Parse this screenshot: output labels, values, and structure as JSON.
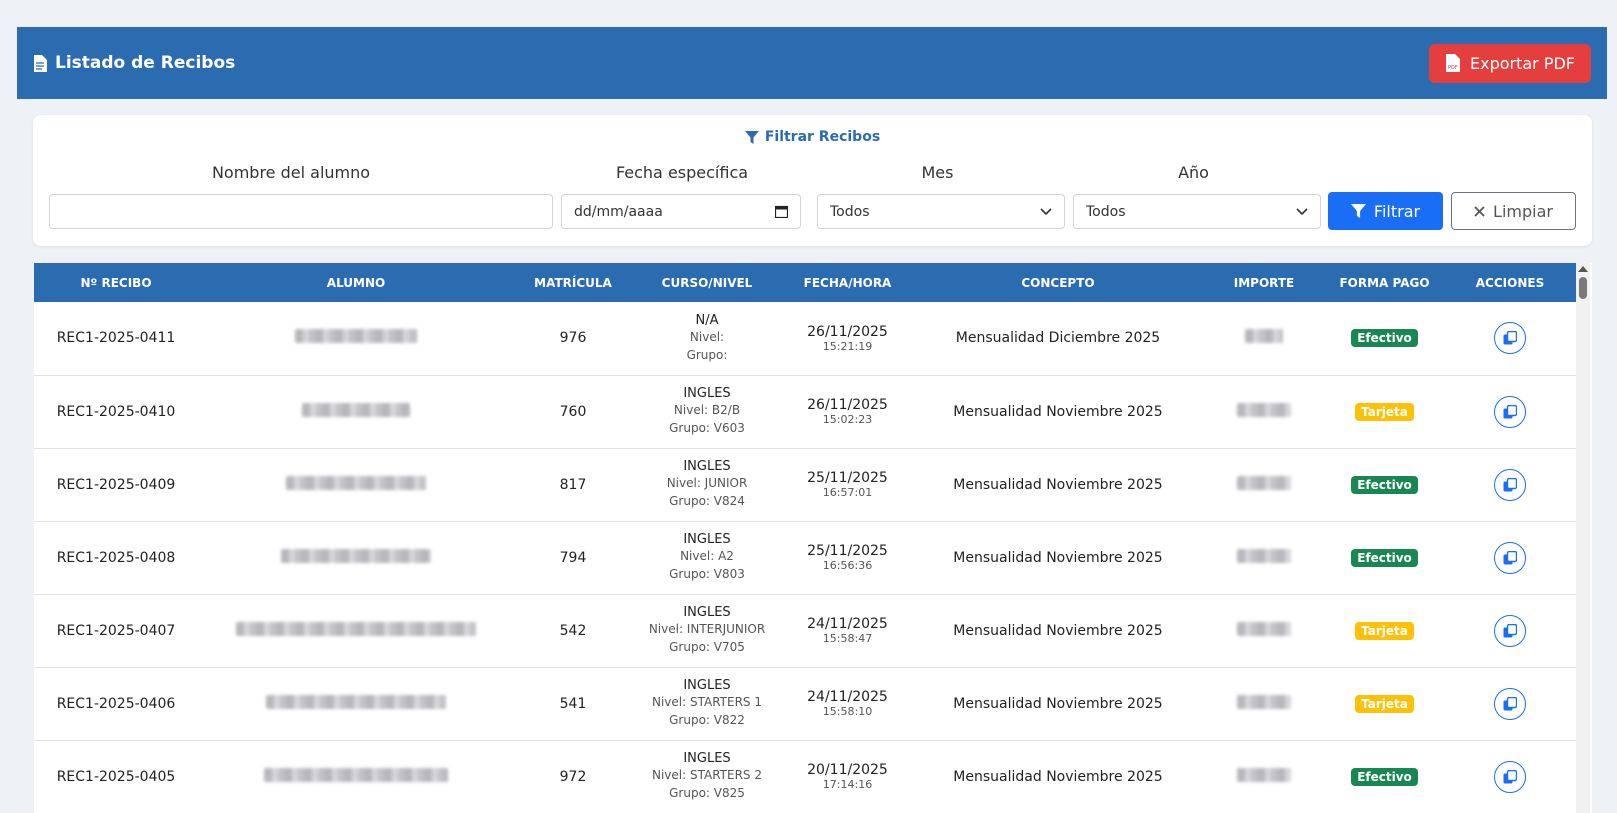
{
  "header": {
    "title": "Listado de Recibos",
    "export_label": "Exportar PDF"
  },
  "filters": {
    "title": "Filtrar Recibos",
    "name_label": "Nombre del alumno",
    "date_label": "Fecha específica",
    "date_placeholder": "dd/mm/aaaa",
    "month_label": "Mes",
    "month_value": "Todos",
    "year_label": "Año",
    "year_value": "Todos",
    "filter_button": "Filtrar",
    "clear_button": "Limpiar"
  },
  "table": {
    "headers": [
      "Nº RECIBO",
      "ALUMNO",
      "MATRÍCULA",
      "CURSO/NIVEL",
      "FECHA/HORA",
      "CONCEPTO",
      "IMPORTE",
      "FORMA PAGO",
      "ACCIONES"
    ],
    "rows": [
      {
        "recibo": "REC1-2025-0411",
        "matricula": "976",
        "curso": "N/A",
        "nivel": "Nivel:",
        "grupo": "Grupo:",
        "fecha": "26/11/2025",
        "hora": "15:21:19",
        "concepto": "Mensualidad Diciembre 2025",
        "forma_pago": "Efectivo"
      },
      {
        "recibo": "REC1-2025-0410",
        "matricula": "760",
        "curso": "INGLES",
        "nivel": "Nivel: B2/B",
        "grupo": "Grupo: V603",
        "fecha": "26/11/2025",
        "hora": "15:02:23",
        "concepto": "Mensualidad Noviembre 2025",
        "forma_pago": "Tarjeta"
      },
      {
        "recibo": "REC1-2025-0409",
        "matricula": "817",
        "curso": "INGLES",
        "nivel": "Nivel: JUNIOR",
        "grupo": "Grupo: V824",
        "fecha": "25/11/2025",
        "hora": "16:57:01",
        "concepto": "Mensualidad Noviembre 2025",
        "forma_pago": "Efectivo"
      },
      {
        "recibo": "REC1-2025-0408",
        "matricula": "794",
        "curso": "INGLES",
        "nivel": "Nivel: A2",
        "grupo": "Grupo: V803",
        "fecha": "25/11/2025",
        "hora": "16:56:36",
        "concepto": "Mensualidad Noviembre 2025",
        "forma_pago": "Efectivo"
      },
      {
        "recibo": "REC1-2025-0407",
        "matricula": "542",
        "curso": "INGLES",
        "nivel": "Nivel: INTERJUNIOR",
        "grupo": "Grupo: V705",
        "fecha": "24/11/2025",
        "hora": "15:58:47",
        "concepto": "Mensualidad Noviembre 2025",
        "forma_pago": "Tarjeta"
      },
      {
        "recibo": "REC1-2025-0406",
        "matricula": "541",
        "curso": "INGLES",
        "nivel": "Nivel: STARTERS 1",
        "grupo": "Grupo: V822",
        "fecha": "24/11/2025",
        "hora": "15:58:10",
        "concepto": "Mensualidad Noviembre 2025",
        "forma_pago": "Tarjeta"
      },
      {
        "recibo": "REC1-2025-0405",
        "matricula": "972",
        "curso": "INGLES",
        "nivel": "Nivel: STARTERS 2",
        "grupo": "Grupo: V825",
        "fecha": "20/11/2025",
        "hora": "17:14:16",
        "concepto": "Mensualidad Noviembre 2025",
        "forma_pago": "Efectivo"
      }
    ]
  },
  "colors": {
    "primary": "#2b6cb0",
    "danger": "#e53e3e",
    "filter_button": "#1a6ef5",
    "efectivo": "#198754",
    "tarjeta": "#ffc107"
  }
}
